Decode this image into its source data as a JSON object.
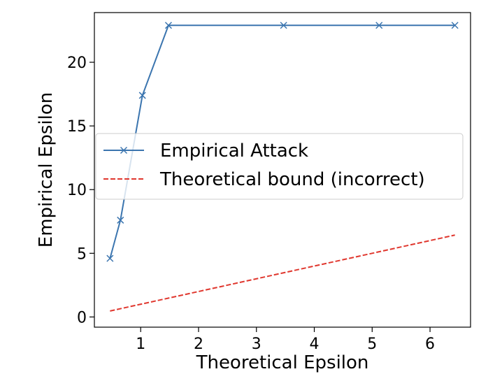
{
  "chart_data": {
    "type": "line",
    "xlabel": "Theoretical Epsilon",
    "ylabel": "Empirical Epsilon",
    "xlim": [
      0.2,
      6.7
    ],
    "ylim": [
      -0.8,
      23.9
    ],
    "xticks": [
      1,
      2,
      3,
      4,
      5,
      6
    ],
    "yticks": [
      0,
      5,
      10,
      15,
      20
    ],
    "grid": false,
    "legend_position": "center-right",
    "series": [
      {
        "name": "Empirical Attack",
        "color": "#3b75af",
        "style": "solid",
        "marker": "x",
        "x": [
          0.47,
          0.65,
          1.03,
          1.48,
          3.47,
          5.12,
          6.43
        ],
        "y": [
          4.6,
          7.6,
          17.4,
          22.9,
          22.9,
          22.9,
          22.9
        ]
      },
      {
        "name": "Theoretical bound (incorrect)",
        "color": "#e0372e",
        "style": "dashed",
        "marker": "none",
        "x": [
          0.47,
          6.43
        ],
        "y": [
          0.47,
          6.43
        ]
      }
    ]
  }
}
